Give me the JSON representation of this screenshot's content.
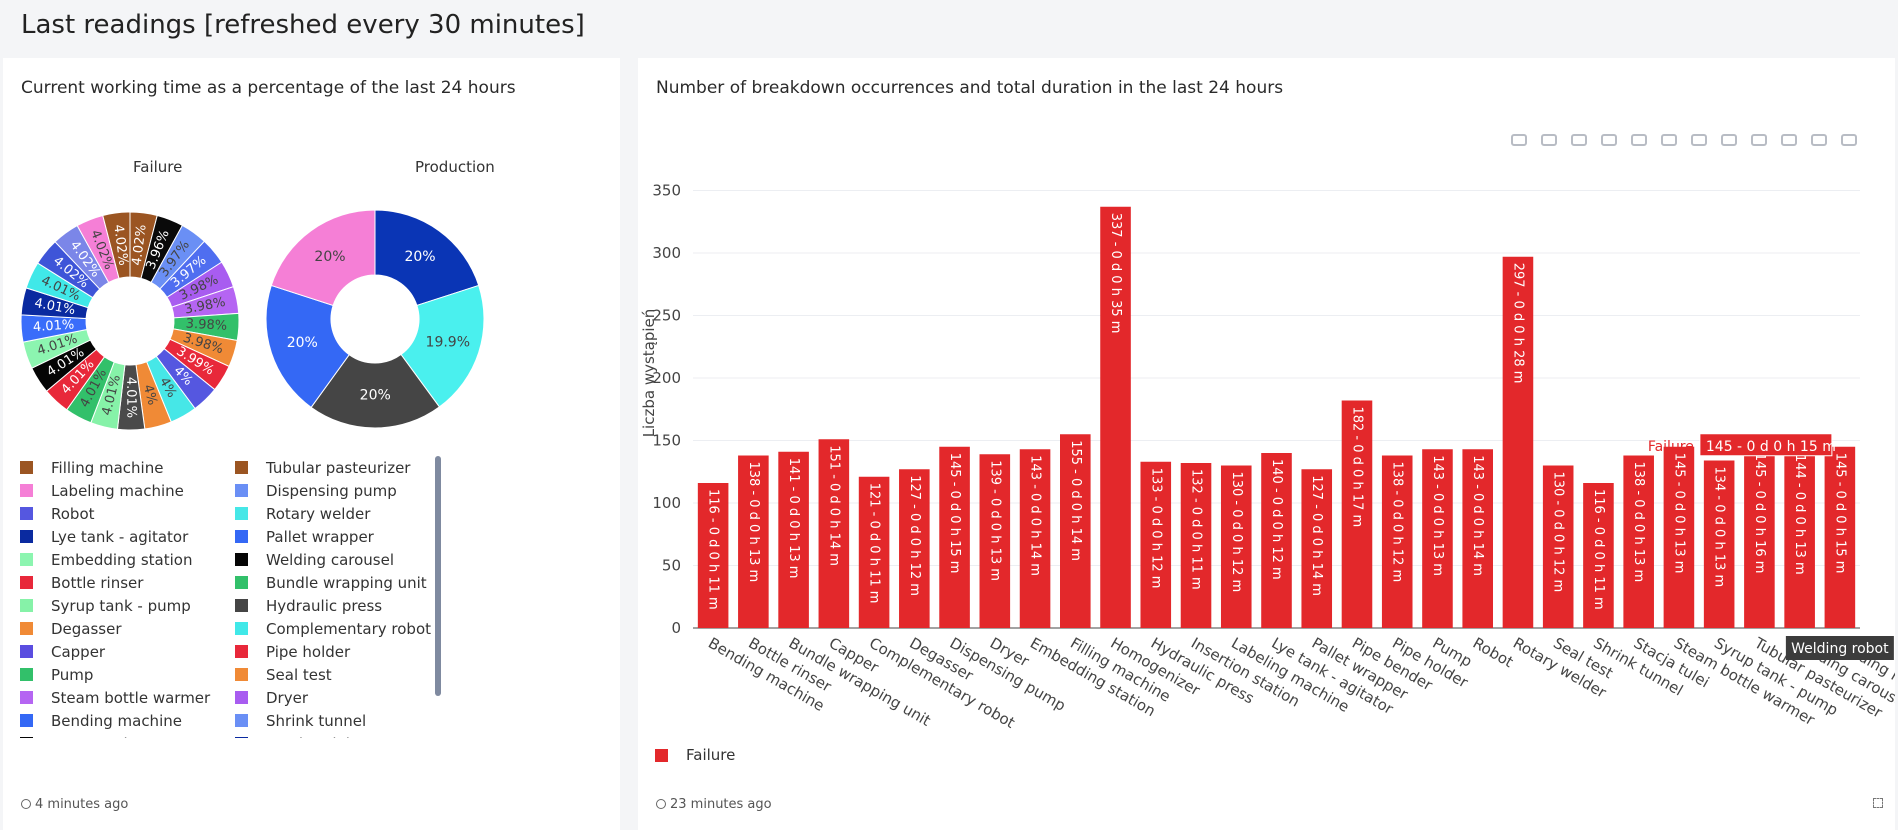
{
  "page_title": "Last readings [refreshed every 30 minutes]",
  "left_panel": {
    "title": "Current working time as a percentage of the last 24 hours",
    "footer": "4 minutes ago",
    "pie_failure": {
      "title": "Failure",
      "slices": [
        {
          "label": "4.02%",
          "value": 4.02,
          "color": "#9b5522"
        },
        {
          "label": "3.96%",
          "value": 3.96,
          "color": "#0a0a0a"
        },
        {
          "label": "3.97%",
          "value": 3.97,
          "color": "#6a8ff5"
        },
        {
          "label": "3.97%",
          "value": 3.97,
          "color": "#4f6ef0"
        },
        {
          "label": "3.98%",
          "value": 3.98,
          "color": "#a85cf0"
        },
        {
          "label": "3.98%",
          "value": 3.98,
          "color": "#b565f2"
        },
        {
          "label": "3.98%",
          "value": 3.98,
          "color": "#32c06a"
        },
        {
          "label": "3.98%",
          "value": 3.98,
          "color": "#f08a36"
        },
        {
          "label": "3.99%",
          "value": 3.99,
          "color": "#e8283a"
        },
        {
          "label": "4%",
          "value": 4.0,
          "color": "#5557e0"
        },
        {
          "label": "4%",
          "value": 4.0,
          "color": "#46e7e7"
        },
        {
          "label": "4%",
          "value": 4.0,
          "color": "#f08a36"
        },
        {
          "label": "4.01%",
          "value": 4.01,
          "color": "#4a4a4a"
        },
        {
          "label": "4.01%",
          "value": 4.01,
          "color": "#86f2a8"
        },
        {
          "label": "4.01%",
          "value": 4.01,
          "color": "#32c06a"
        },
        {
          "label": "4.01%",
          "value": 4.01,
          "color": "#e8283a"
        },
        {
          "label": "4.01%",
          "value": 4.01,
          "color": "#050505"
        },
        {
          "label": "4.01%",
          "value": 4.01,
          "color": "#8cf5b0"
        },
        {
          "label": "4.01%",
          "value": 4.01,
          "color": "#3a6dfa"
        },
        {
          "label": "4.01%",
          "value": 4.01,
          "color": "#0a2aa0"
        },
        {
          "label": "4.01%",
          "value": 4.01,
          "color": "#40e8e8"
        },
        {
          "label": "4.02%",
          "value": 4.02,
          "color": "#3e55d8"
        },
        {
          "label": "4.02%",
          "value": 4.02,
          "color": "#7b86e8"
        },
        {
          "label": "4.02%",
          "value": 4.02,
          "color": "#f57fd6"
        },
        {
          "label": "4.02%",
          "value": 4.02,
          "color": "#9b5522"
        }
      ]
    },
    "pie_production": {
      "title": "Production",
      "slices": [
        {
          "label": "20%",
          "value": 20,
          "color": "#0a35b5"
        },
        {
          "label": "19.9%",
          "value": 19.9,
          "color": "#4af0ee"
        },
        {
          "label": "20%",
          "value": 20,
          "color": "#454545"
        },
        {
          "label": "20%",
          "value": 20,
          "color": "#3468f5"
        },
        {
          "label": "20%",
          "value": 20,
          "color": "#f57fd6"
        }
      ]
    },
    "legend_col1": [
      {
        "label": "Filling machine",
        "color": "#9b5522"
      },
      {
        "label": "Labeling machine",
        "color": "#f57fd6"
      },
      {
        "label": "Robot",
        "color": "#5557e0"
      },
      {
        "label": "Lye tank - agitator",
        "color": "#0a2aa0"
      },
      {
        "label": "Embedding station",
        "color": "#8cf5b0"
      },
      {
        "label": "Bottle rinser",
        "color": "#e8283a"
      },
      {
        "label": "Syrup tank - pump",
        "color": "#86f2a8"
      },
      {
        "label": "Degasser",
        "color": "#f08a36"
      },
      {
        "label": "Capper",
        "color": "#5a4de0"
      },
      {
        "label": "Pump",
        "color": "#32c06a"
      },
      {
        "label": "Steam bottle warmer",
        "color": "#b565f2"
      },
      {
        "label": "Bending machine",
        "color": "#3468f5"
      },
      {
        "label": "Homogenizer",
        "color": "#050505"
      }
    ],
    "legend_col2": [
      {
        "label": "Tubular pasteurizer",
        "color": "#9b5522"
      },
      {
        "label": "Dispensing pump",
        "color": "#6a8ff5"
      },
      {
        "label": "Rotary welder",
        "color": "#46e7e7"
      },
      {
        "label": "Pallet wrapper",
        "color": "#3468f5"
      },
      {
        "label": "Welding carousel",
        "color": "#050505"
      },
      {
        "label": "Bundle wrapping unit",
        "color": "#32c06a"
      },
      {
        "label": "Hydraulic press",
        "color": "#454545"
      },
      {
        "label": "Complementary robot",
        "color": "#40e8e8"
      },
      {
        "label": "Pipe holder",
        "color": "#e8283a"
      },
      {
        "label": "Seal test",
        "color": "#f08a36"
      },
      {
        "label": "Dryer",
        "color": "#a85cf0"
      },
      {
        "label": "Shrink tunnel",
        "color": "#6a8ff5"
      },
      {
        "label": "Stacja tulei",
        "color": "#0a2aa0"
      }
    ]
  },
  "right_panel": {
    "title": "Number of breakdown occurrences and total duration in the last 24 hours",
    "footer": "23 minutes ago",
    "legend_label": "Failure",
    "tooltip": {
      "series": "Failure",
      "value": "145 - 0 d 0 h 15 m",
      "category": "Welding robot"
    },
    "toolbar_icons": [
      "camera-icon",
      "zoom-icon",
      "pan-icon",
      "box-select-icon",
      "lasso-icon",
      "zoom-in-icon",
      "zoom-out-icon",
      "autoscale-icon",
      "reset-icon",
      "spike-icon",
      "hover-closest-icon",
      "hover-compare-icon"
    ]
  },
  "chart_data": {
    "type": "bar",
    "ylabel": "Liczba wystąpień",
    "xlabel": "",
    "ylim": [
      0,
      360
    ],
    "yticks": [
      0,
      50,
      100,
      150,
      200,
      250,
      300,
      350
    ],
    "series": [
      {
        "name": "Failure",
        "color": "#e3282b",
        "categories": [
          "Bending machine",
          "Bottle rinser",
          "Bundle wrapping unit",
          "Capper",
          "Complementary robot",
          "Degasser",
          "Dispensing pump",
          "Dryer",
          "Embedding station",
          "Filling machine",
          "Homogenizer",
          "Hydraulic press",
          "Insertion station",
          "Labeling machine",
          "Lye tank - agitator",
          "Pallet wrapper",
          "Pipe bender",
          "Pipe holder",
          "Pump",
          "Robot",
          "Rotary welder",
          "Seal test",
          "Shrink tunnel",
          "Stacja tulei",
          "Steam bottle warmer",
          "Syrup tank - pump",
          "Tubular pasteurizer",
          "Welding carousel",
          "Welding robot"
        ],
        "values": [
          116,
          138,
          141,
          151,
          121,
          127,
          145,
          139,
          143,
          155,
          337,
          133,
          132,
          130,
          140,
          127,
          182,
          138,
          143,
          143,
          297,
          130,
          116,
          138,
          145,
          134,
          145,
          144,
          145
        ],
        "labels": [
          "116 - 0 d 0 h 11 m",
          "138 - 0 d 0 h 13 m",
          "141 - 0 d 0 h 13 m",
          "151 - 0 d 0 h 14 m",
          "121 - 0 d 0 h 11 m",
          "127 - 0 d 0 h 12 m",
          "145 - 0 d 0 h 15 m",
          "139 - 0 d 0 h 13 m",
          "143 - 0 d 0 h 14 m",
          "155 - 0 d 0 h 14 m",
          "337 - 0 d 0 h 35 m",
          "133 - 0 d 0 h 12 m",
          "132 - 0 d 0 h 11 m",
          "130 - 0 d 0 h 12 m",
          "140 - 0 d 0 h 12 m",
          "127 - 0 d 0 h 14 m",
          "182 - 0 d 0 h 17 m",
          "138 - 0 d 0 h 12 m",
          "143 - 0 d 0 h 13 m",
          "143 - 0 d 0 h 14 m",
          "297 - 0 d 0 h 28 m",
          "130 - 0 d 0 h 12 m",
          "116 - 0 d 0 h 11 m",
          "138 - 0 d 0 h 13 m",
          "145 - 0 d 0 h 13 m",
          "134 - 0 d 0 h 13 m",
          "145 - 0 d 0 h 16 m",
          "144 - 0 d 0 h 13 m",
          "145 - 0 d 0 h 15 m"
        ]
      }
    ]
  }
}
